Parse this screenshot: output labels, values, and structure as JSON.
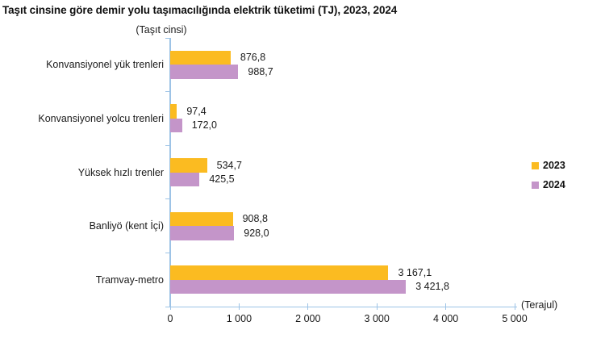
{
  "title": "Taşıt cinsine göre demir yolu taşımacılığında elektrik tüketimi (TJ), 2023, 2024",
  "y_axis_title": "(Taşıt cinsi)",
  "x_axis_title": "(Terajul)",
  "colors": {
    "series_2023": "#FBBB21",
    "series_2024": "#C495C9",
    "axis": "#9DC3E6",
    "text": "#1a1a1a"
  },
  "legend": [
    {
      "label": "2023",
      "color": "#FBBB21"
    },
    {
      "label": "2024",
      "color": "#C495C9"
    }
  ],
  "chart_data": {
    "type": "bar",
    "orientation": "horizontal",
    "title": "Taşıt cinsine göre demir yolu taşımacılığında elektrik tüketimi (TJ), 2023, 2024",
    "xlabel": "(Terajul)",
    "ylabel": "(Taşıt cinsi)",
    "categories": [
      "Konvansiyonel yük trenleri",
      "Konvansiyonel yolcu trenleri",
      "Yüksek hızlı trenler",
      "Banliyö (kent İçi)",
      "Tramvay-metro"
    ],
    "series": [
      {
        "name": "2023",
        "color": "#FBBB21",
        "values": [
          876.8,
          97.4,
          534.7,
          908.8,
          3167.1
        ],
        "labels": [
          "876,8",
          "97,4",
          "534,7",
          "908,8",
          "3 167,1"
        ]
      },
      {
        "name": "2024",
        "color": "#C495C9",
        "values": [
          988.7,
          172.0,
          425.5,
          928.0,
          3421.8
        ],
        "labels": [
          "988,7",
          "172,0",
          "425,5",
          "928,0",
          "3 421,8"
        ]
      }
    ],
    "xlim": [
      0,
      5000
    ],
    "x_ticks": [
      0,
      1000,
      2000,
      3000,
      4000,
      5000
    ],
    "x_tick_labels": [
      "0",
      "1 000",
      "2 000",
      "3 000",
      "4 000",
      "5 000"
    ],
    "grid": false,
    "legend_position": "right"
  }
}
